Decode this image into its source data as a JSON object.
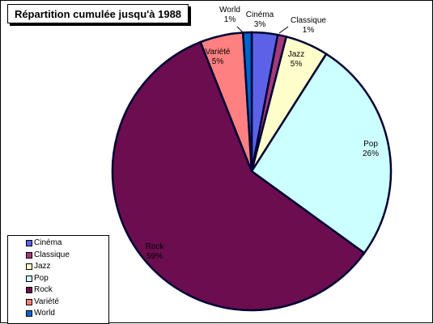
{
  "window": {
    "title": "Répartition cumulée jusqu'à 1988"
  },
  "chart_data": {
    "type": "pie",
    "title": "Répartition cumulée jusqu'à 1988",
    "legend_position": "bottom-left",
    "slices": [
      {
        "label": "Cinéma",
        "value": 3,
        "value_label": "3%",
        "color": "#5b62e8"
      },
      {
        "label": "Classique",
        "value": 1,
        "value_label": "1%",
        "color": "#a33a78"
      },
      {
        "label": "Jazz",
        "value": 5,
        "value_label": "5%",
        "color": "#ffffcc"
      },
      {
        "label": "Pop",
        "value": 26,
        "value_label": "26%",
        "color": "#ccffff"
      },
      {
        "label": "Rock",
        "value": 59,
        "value_label": "59%",
        "color": "#6b0d4f"
      },
      {
        "label": "Variété",
        "value": 5,
        "value_label": "5%",
        "color": "#ff8080"
      },
      {
        "label": "World",
        "value": 1,
        "value_label": "1%",
        "color": "#0066cc"
      }
    ]
  }
}
